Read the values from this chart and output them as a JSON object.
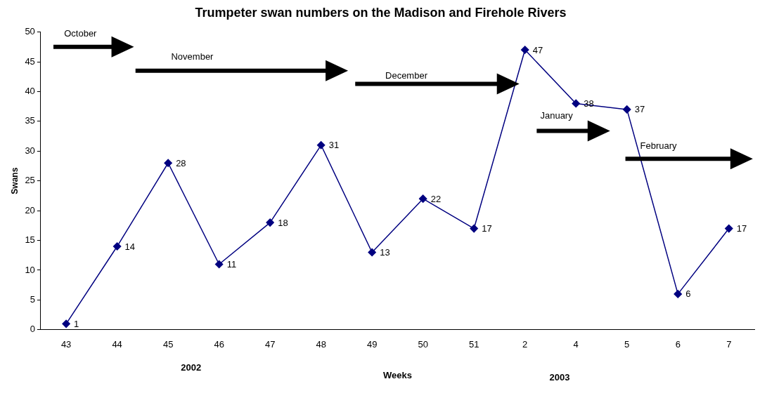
{
  "chart_data": {
    "type": "line",
    "title": "Trumpeter swan numbers on the Madison and Firehole Rivers",
    "xlabel": "Weeks",
    "ylabel": "Swans",
    "categories": [
      "43",
      "44",
      "45",
      "46",
      "47",
      "48",
      "49",
      "50",
      "51",
      "2",
      "4",
      "5",
      "6",
      "7"
    ],
    "series": [
      {
        "color": "#000080",
        "values": [
          1,
          14,
          28,
          11,
          18,
          31,
          13,
          22,
          17,
          47,
          38,
          37,
          6,
          17
        ]
      }
    ],
    "ylim": [
      0,
      50
    ],
    "yticks": [
      0,
      5,
      10,
      15,
      20,
      25,
      30,
      35,
      40,
      45,
      50
    ],
    "grid": false,
    "legend": false,
    "marker": "diamond",
    "line_style": "solid",
    "data_labels": true,
    "annotations": [
      "October",
      "November",
      "December",
      "January",
      "February",
      "2002",
      "2003"
    ]
  }
}
